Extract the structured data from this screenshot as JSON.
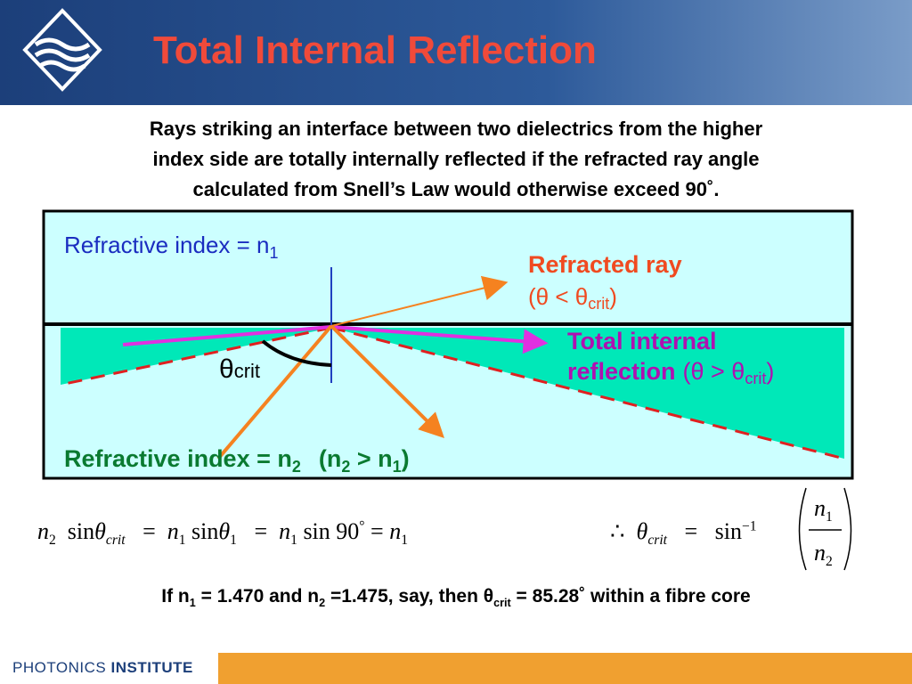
{
  "header": {
    "title": "Total Internal Reflection"
  },
  "intro": [
    "Rays striking an interface between two dielectrics from the higher",
    "index side are totally internally reflected if the refracted ray angle",
    "calculated from Snell’s Law would otherwise exceed 90˚."
  ],
  "diagram": {
    "upper_label": [
      "Refractive index = n",
      "1"
    ],
    "refracted": {
      "title": "Refracted ray",
      "condition": [
        "(θ < θ",
        "crit",
        ")"
      ]
    },
    "tir": {
      "line1": "Total internal",
      "line2": "reflection",
      "condition": [
        "(θ > θ",
        "crit",
        ")"
      ]
    },
    "angle": [
      "θ",
      "crit"
    ],
    "lower_label": [
      "Refractive index = n",
      "2",
      "(n",
      "2",
      " > n",
      "1",
      ")"
    ]
  },
  "equation_left": [
    "n",
    "2",
    "sin",
    "θ",
    "crit",
    "=",
    "n",
    "1",
    "sin",
    "θ",
    "1",
    "=",
    "n",
    "1",
    "sin 90",
    "°",
    "=",
    "n",
    "1"
  ],
  "equation_right": [
    "∴",
    "θ",
    "crit",
    "=",
    "sin",
    "−1",
    "n",
    "1",
    "n",
    "2"
  ],
  "statement": [
    "If n",
    "1",
    " = 1.470 and n",
    "2",
    " =1.475, say, then ",
    "θ",
    "crit",
    " = 85.28˚ within a fibre core"
  ],
  "footer": {
    "brand": "PHOTONICS",
    "brand_bold": "INSTITUTE"
  }
}
